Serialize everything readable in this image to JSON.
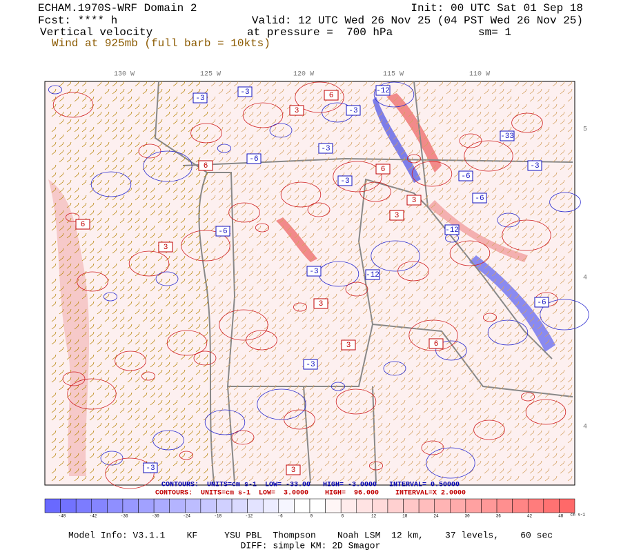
{
  "header": {
    "title": "ECHAM.1970S-WRF Domain 2",
    "init": "Init: 00 UTC Sat 01 Sep 18",
    "forecast": "Fcst: **** h",
    "valid": "Valid: 12 UTC Wed 26 Nov 25 (04 PST Wed 26 Nov 25)",
    "field": "Vertical velocity",
    "level": "at pressure =  700 hPa",
    "smoothing": "sm= 1",
    "wind": "Wind at 925mb (full barb = 10kts)"
  },
  "map": {
    "longitude_labels": [
      "130 W",
      "125 W",
      "120 W",
      "115 W",
      "110 W"
    ],
    "latitude_labels": [
      "5",
      "4",
      "4"
    ],
    "contour_labels": [
      "-3",
      "-3",
      "-12",
      "6",
      "-3",
      "3",
      "-3",
      "-6",
      "6",
      "-33",
      "-3",
      "-6",
      "-3",
      "6",
      "3",
      "-6",
      "3",
      "-12",
      "6",
      "3",
      "-3",
      "-6",
      "3",
      "-12",
      "-3",
      "-6",
      "3",
      "6",
      "-3",
      "3"
    ]
  },
  "contour_info": {
    "negative": "CONTOURS:  UNITS=cm s-1  LOW= -33.00   HIGH= -3.0000   INTERVAL= 0.50000",
    "positive": "CONTOURS:  UNITS=cm s-1  LOW=  3.0000    HIGH=  96.000    INTERVAL=X 2.0000"
  },
  "colorbar": {
    "labels": [
      "-48",
      "-42",
      "-36",
      "-30",
      "-24",
      "-18",
      "-12",
      "-6",
      "0",
      "6",
      "12",
      "18",
      "24",
      "30",
      "36",
      "42",
      "48"
    ],
    "units": "cm s-1"
  },
  "footer": {
    "model_info": "Model Info: V3.1.1    KF     YSU PBL  Thompson    Noah LSM  12 km,    37 levels,    60 sec",
    "diff": "DIFF: simple KM: 2D Smagor"
  }
}
